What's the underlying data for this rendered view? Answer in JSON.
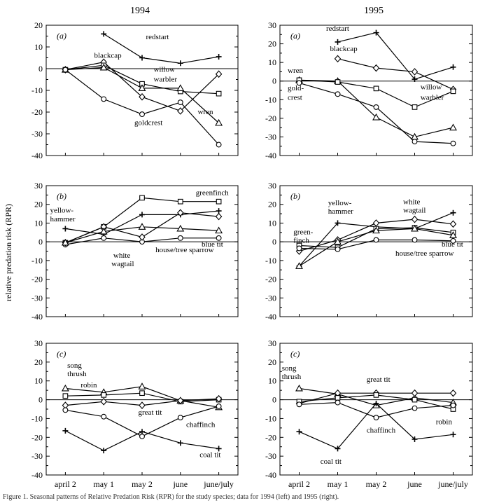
{
  "titles": [
    "1994",
    "1995"
  ],
  "ylabel": "relative predation risk (RPR)",
  "caption": "Figure 1. Seasonal patterns of Relative Predation Risk (RPR) for the study species; data for 1994 (left) and 1995 (right).",
  "categories": [
    "april 2",
    "may 1",
    "may 2",
    "june",
    "june/july"
  ],
  "chart_data": [
    {
      "id": "a1994",
      "type": "line",
      "panel_label": "(a)",
      "ylim": [
        -40,
        20
      ],
      "yticks": [
        20,
        10,
        0,
        -10,
        -20,
        -30,
        -40
      ],
      "yticklabels": [
        "20",
        "10",
        "0",
        "-10",
        "-20",
        "-30",
        "-40"
      ],
      "series": [
        {
          "name": "redstart",
          "marker": "plus",
          "values": [
            null,
            16,
            5,
            2.5,
            5.5
          ]
        },
        {
          "name": "blackcap",
          "marker": "diamond",
          "values": [
            -0.5,
            3,
            -13,
            -19.5,
            -2.5
          ]
        },
        {
          "name": "willow warbler",
          "marker": "square",
          "values": [
            -0.5,
            1.5,
            -7,
            -10.5,
            -11.5
          ]
        },
        {
          "name": "wren",
          "marker": "triangle",
          "values": [
            -0.5,
            0.5,
            -9,
            -9,
            -25
          ]
        },
        {
          "name": "goldcrest",
          "marker": "circle",
          "values": [
            -0.5,
            -14,
            -21,
            -15.5,
            -35
          ]
        }
      ],
      "annotations": [
        {
          "text": "redstart",
          "x": 2.1,
          "y": 13.5
        },
        {
          "text": "blackcap",
          "x": 0.75,
          "y": 5
        },
        {
          "text": "willow",
          "x": 2.3,
          "y": -1.5
        },
        {
          "text": "warbler",
          "x": 2.3,
          "y": -6
        },
        {
          "text": "goldcrest",
          "x": 1.8,
          "y": -26
        },
        {
          "text": "wren",
          "x": 3.45,
          "y": -21
        }
      ]
    },
    {
      "id": "a1995",
      "type": "line",
      "panel_label": "(a)",
      "ylim": [
        -40,
        30
      ],
      "yticks": [
        30,
        20,
        10,
        0,
        -10,
        -20,
        -30,
        -40
      ],
      "yticklabels": [
        "30",
        "20",
        "10",
        "0",
        "-10",
        "-20",
        "-30",
        "-40"
      ],
      "series": [
        {
          "name": "redstart",
          "marker": "plus",
          "values": [
            null,
            21,
            26,
            1,
            7.5
          ]
        },
        {
          "name": "blackcap",
          "marker": "diamond",
          "values": [
            null,
            12,
            7,
            5,
            -4.5
          ]
        },
        {
          "name": "wren",
          "marker": "triangle",
          "values": [
            0.5,
            0,
            -19.5,
            -30,
            -25
          ]
        },
        {
          "name": "willow warbler",
          "marker": "square",
          "values": [
            0.5,
            -0.5,
            -4,
            -14,
            -5.5
          ]
        },
        {
          "name": "goldcrest",
          "marker": "circle",
          "values": [
            -1,
            -7,
            -14,
            -32.5,
            -33.5
          ]
        }
      ],
      "annotations": [
        {
          "text": "redstart",
          "x": 0.7,
          "y": 27
        },
        {
          "text": "blackcap",
          "x": 0.8,
          "y": 16
        },
        {
          "text": "wren",
          "x": -0.3,
          "y": 4.5
        },
        {
          "text": "gold-",
          "x": -0.3,
          "y": -5
        },
        {
          "text": "crest",
          "x": -0.3,
          "y": -10
        },
        {
          "text": "willow",
          "x": 3.15,
          "y": -4.5
        },
        {
          "text": "warbler",
          "x": 3.15,
          "y": -10
        }
      ]
    },
    {
      "id": "b1994",
      "type": "line",
      "panel_label": "(b)",
      "ylim": [
        -40,
        30
      ],
      "yticks": [
        30,
        20,
        10,
        0,
        -10,
        -20,
        -30,
        -40
      ],
      "yticklabels": [
        "30",
        "20",
        "10",
        "0",
        "-10",
        "-20",
        "-30",
        "-40"
      ],
      "series": [
        {
          "name": "greenfinch",
          "marker": "square",
          "values": [
            -0.5,
            8,
            23.5,
            21.5,
            21.5
          ]
        },
        {
          "name": "yellowhammer",
          "marker": "plus",
          "values": [
            7,
            4,
            14.5,
            14.5,
            16.5
          ]
        },
        {
          "name": "blue tit",
          "marker": "circle",
          "values": [
            -1.5,
            2,
            0,
            2,
            2
          ]
        },
        {
          "name": "white wagtail",
          "marker": "diamond",
          "values": [
            -0.5,
            8,
            2.5,
            15.5,
            13.5
          ]
        },
        {
          "name": "house/tree sparrow",
          "marker": "triangle",
          "values": [
            -0.5,
            5.5,
            8,
            7,
            6
          ]
        }
      ],
      "annotations": [
        {
          "text": "greenfinch",
          "x": 3.4,
          "y": 25
        },
        {
          "text": "yellow-",
          "x": -0.4,
          "y": 15.5
        },
        {
          "text": "hammer",
          "x": -0.4,
          "y": 11
        },
        {
          "text": "white",
          "x": 1.25,
          "y": -8.5
        },
        {
          "text": "wagtail",
          "x": 1.2,
          "y": -13
        },
        {
          "text": "house/tree sparrow",
          "x": 2.35,
          "y": -5.5
        },
        {
          "text": "blue tit",
          "x": 3.55,
          "y": -2.5
        }
      ]
    },
    {
      "id": "b1995",
      "type": "line",
      "panel_label": "(b)",
      "ylim": [
        -40,
        30
      ],
      "yticks": [
        30,
        20,
        10,
        0,
        -10,
        -20,
        -30,
        -40
      ],
      "yticklabels": [
        "30",
        "20",
        "10",
        "0",
        "-10",
        "-20",
        "-30",
        "-40"
      ],
      "series": [
        {
          "name": "yellowhammer",
          "marker": "plus",
          "values": [
            -13,
            10,
            8,
            7,
            15.5
          ]
        },
        {
          "name": "white wagtail",
          "marker": "diamond",
          "values": [
            -5,
            1,
            10,
            12,
            9.5
          ]
        },
        {
          "name": "greenfinch",
          "marker": "square",
          "values": [
            -2,
            -3,
            7,
            7.5,
            5
          ]
        },
        {
          "name": "house/tree sparrow",
          "marker": "triangle",
          "values": [
            -13,
            0,
            6,
            7,
            3.5
          ]
        },
        {
          "name": "blue tit",
          "marker": "circle",
          "values": [
            -3.5,
            -4,
            1,
            1,
            0.5
          ]
        }
      ],
      "annotations": [
        {
          "text": "yellow-",
          "x": 0.75,
          "y": 19.5
        },
        {
          "text": "hammer",
          "x": 0.75,
          "y": 15
        },
        {
          "text": "white",
          "x": 2.7,
          "y": 20
        },
        {
          "text": "wagtail",
          "x": 2.7,
          "y": 15.5
        },
        {
          "text": "green-",
          "x": -0.15,
          "y": 4
        },
        {
          "text": "finch",
          "x": -0.15,
          "y": -0.5
        },
        {
          "text": "blue tit",
          "x": 3.7,
          "y": -2.5
        },
        {
          "text": "house/tree sparrow",
          "x": 2.5,
          "y": -7.5
        }
      ]
    },
    {
      "id": "c1994",
      "type": "line",
      "panel_label": "(c)",
      "ylim": [
        -40,
        30
      ],
      "yticks": [
        30,
        20,
        10,
        0,
        -10,
        -20,
        -30,
        -40
      ],
      "yticklabels": [
        "30",
        "20",
        "10",
        "0",
        "-10",
        "-20",
        "-30",
        "-40"
      ],
      "series": [
        {
          "name": "song thrush",
          "marker": "triangle",
          "values": [
            6,
            4,
            7,
            -0.5,
            -4
          ]
        },
        {
          "name": "robin",
          "marker": "square",
          "values": [
            2,
            2.5,
            3.5,
            -1,
            0
          ]
        },
        {
          "name": "great tit",
          "marker": "diamond",
          "values": [
            -3,
            -1,
            -3,
            -0.5,
            0.5
          ]
        },
        {
          "name": "chaffinch",
          "marker": "circle",
          "values": [
            -5.5,
            -9,
            -19.5,
            -9.5,
            -3.5
          ]
        },
        {
          "name": "coal tit",
          "marker": "plus",
          "values": [
            -16.5,
            -27,
            -17,
            -23,
            -26
          ]
        }
      ],
      "annotations": [
        {
          "text": "song",
          "x": 0.05,
          "y": 17
        },
        {
          "text": "thrush",
          "x": 0.05,
          "y": 12.5
        },
        {
          "text": "robin",
          "x": 0.4,
          "y": 6.5
        },
        {
          "text": "great tit",
          "x": 1.9,
          "y": -8
        },
        {
          "text": "chaffinch",
          "x": 3.15,
          "y": -14.5
        },
        {
          "text": "coal tit",
          "x": 3.5,
          "y": -30.5
        }
      ]
    },
    {
      "id": "c1995",
      "type": "line",
      "panel_label": "(c)",
      "ylim": [
        -40,
        30
      ],
      "yticks": [
        30,
        20,
        10,
        0,
        -10,
        -20,
        -30,
        -40
      ],
      "yticklabels": [
        "30",
        "20",
        "10",
        "0",
        "-10",
        "-20",
        "-30",
        "-40"
      ],
      "series": [
        {
          "name": "song thrush",
          "marker": "triangle",
          "values": [
            6,
            3,
            -3,
            1,
            -1.5
          ]
        },
        {
          "name": "great tit",
          "marker": "diamond",
          "values": [
            -2,
            3.5,
            3.5,
            3.5,
            3.5
          ]
        },
        {
          "name": "robin",
          "marker": "square",
          "values": [
            -1,
            1,
            2.5,
            0,
            -5
          ]
        },
        {
          "name": "chaffinch",
          "marker": "circle",
          "values": [
            -2.5,
            -1.5,
            -9.5,
            -4.5,
            -3
          ]
        },
        {
          "name": "coal tit",
          "marker": "plus",
          "values": [
            -17,
            -26,
            -2,
            -21,
            -18.5
          ]
        }
      ],
      "annotations": [
        {
          "text": "song",
          "x": -0.45,
          "y": 15.5
        },
        {
          "text": "thrush",
          "x": -0.45,
          "y": 11
        },
        {
          "text": "great tit",
          "x": 1.75,
          "y": 9.5
        },
        {
          "text": "chaffinch",
          "x": 1.75,
          "y": -17.5
        },
        {
          "text": "robin",
          "x": 3.55,
          "y": -13
        },
        {
          "text": "coal tit",
          "x": 0.55,
          "y": -34
        }
      ]
    }
  ]
}
